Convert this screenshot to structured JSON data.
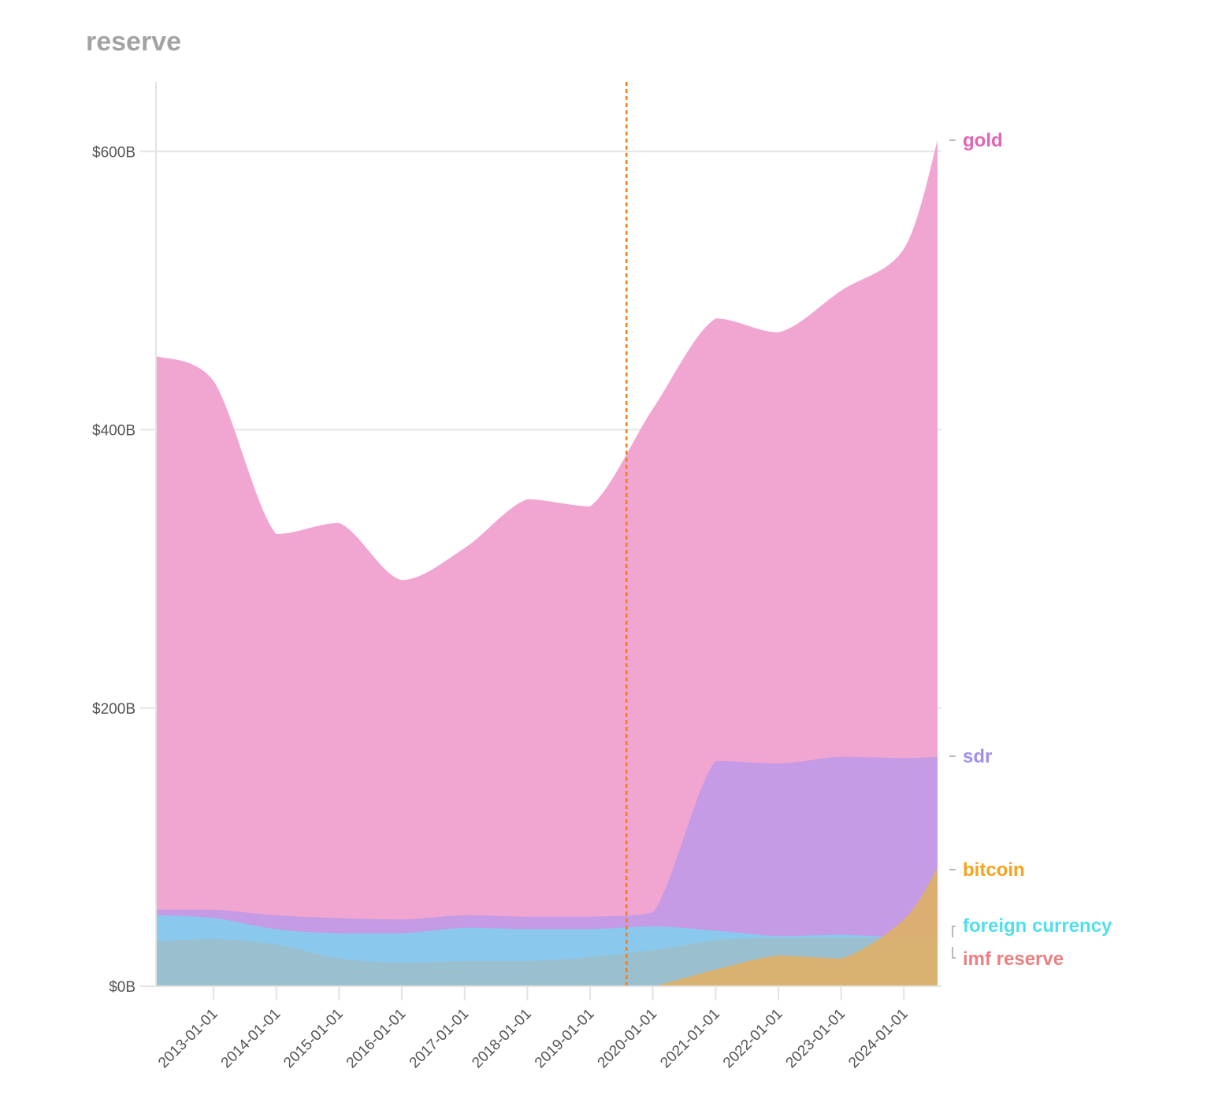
{
  "chart_data": {
    "type": "area",
    "title": "reserve",
    "xlabel": "",
    "ylabel": "",
    "x_ticks": [
      "2013-01-01",
      "2014-01-01",
      "2015-01-01",
      "2016-01-01",
      "2017-01-01",
      "2018-01-01",
      "2019-01-01",
      "2020-01-01",
      "2021-01-01",
      "2022-01-01",
      "2023-01-01",
      "2024-01-01"
    ],
    "y_ticks": [
      "$0B",
      "$200B",
      "$400B",
      "$600B"
    ],
    "y_tick_values": [
      0,
      200,
      400,
      600
    ],
    "ylim": [
      0,
      650
    ],
    "xlim": [
      "2012-02-01",
      "2024-07-15"
    ],
    "grid": true,
    "legend": "right, labels at series end",
    "overlapping": true,
    "marker_line": {
      "x": "2019-08-01",
      "color": "#f07e1b",
      "style": "dotted"
    },
    "series": [
      {
        "name": "gold",
        "color": "#f0a1cf",
        "label_color": "#e464b3",
        "values": [
          [
            "2012-02-01",
            453
          ],
          [
            "2013-01-01",
            435
          ],
          [
            "2014-01-01",
            325
          ],
          [
            "2015-01-01",
            333
          ],
          [
            "2016-01-01",
            292
          ],
          [
            "2017-01-01",
            315
          ],
          [
            "2018-01-01",
            350
          ],
          [
            "2019-01-01",
            345
          ],
          [
            "2020-01-01",
            415
          ],
          [
            "2021-01-01",
            480
          ],
          [
            "2022-01-01",
            470
          ],
          [
            "2023-01-01",
            500
          ],
          [
            "2024-01-01",
            530
          ],
          [
            "2024-07-15",
            608
          ]
        ]
      },
      {
        "name": "sdr",
        "color": "#c29ae6",
        "label_color": "#a38ef0",
        "values": [
          [
            "2012-02-01",
            55
          ],
          [
            "2013-01-01",
            55
          ],
          [
            "2014-01-01",
            51
          ],
          [
            "2015-01-01",
            49
          ],
          [
            "2016-01-01",
            48
          ],
          [
            "2017-01-01",
            51
          ],
          [
            "2018-01-01",
            50
          ],
          [
            "2019-01-01",
            50
          ],
          [
            "2020-01-01",
            53
          ],
          [
            "2021-01-01",
            162
          ],
          [
            "2022-01-01",
            160
          ],
          [
            "2023-01-01",
            165
          ],
          [
            "2024-01-01",
            164
          ],
          [
            "2024-07-15",
            165
          ]
        ]
      },
      {
        "name": "foreign currency",
        "color": "#87cbed",
        "label_color": "#4fe0ea",
        "values": [
          [
            "2012-02-01",
            51
          ],
          [
            "2013-01-01",
            49
          ],
          [
            "2014-01-01",
            41
          ],
          [
            "2015-01-01",
            38
          ],
          [
            "2016-01-01",
            38
          ],
          [
            "2017-01-01",
            42
          ],
          [
            "2018-01-01",
            41
          ],
          [
            "2019-01-01",
            41
          ],
          [
            "2020-01-01",
            43
          ],
          [
            "2021-01-01",
            40
          ],
          [
            "2022-01-01",
            36
          ],
          [
            "2023-01-01",
            37
          ],
          [
            "2024-01-01",
            35
          ],
          [
            "2024-07-15",
            35
          ]
        ]
      },
      {
        "name": "imf reserve",
        "color": "#9bbfcd",
        "label_color": "#ec8080",
        "values": [
          [
            "2012-02-01",
            32
          ],
          [
            "2013-01-01",
            34
          ],
          [
            "2014-01-01",
            30
          ],
          [
            "2015-01-01",
            20
          ],
          [
            "2016-01-01",
            17
          ],
          [
            "2017-01-01",
            18
          ],
          [
            "2018-01-01",
            18
          ],
          [
            "2019-01-01",
            21
          ],
          [
            "2020-01-01",
            26
          ],
          [
            "2021-01-01",
            33
          ],
          [
            "2022-01-01",
            35
          ],
          [
            "2023-01-01",
            35
          ],
          [
            "2024-01-01",
            35
          ],
          [
            "2024-07-15",
            34
          ]
        ]
      },
      {
        "name": "bitcoin",
        "color": "#dcb06a",
        "label_color": "#f9a21b",
        "values": [
          [
            "2019-09-01",
            0
          ],
          [
            "2020-01-01",
            0
          ],
          [
            "2021-01-01",
            12
          ],
          [
            "2022-01-01",
            22
          ],
          [
            "2023-01-01",
            20
          ],
          [
            "2024-01-01",
            48
          ],
          [
            "2024-07-15",
            85
          ]
        ]
      }
    ]
  }
}
